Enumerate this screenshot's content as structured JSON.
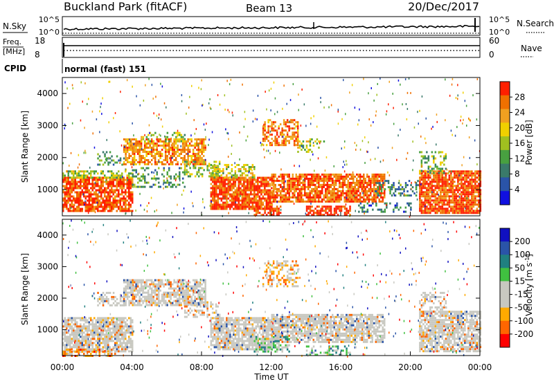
{
  "header": {
    "station": "Buckland Park (fitACF)",
    "beam": "Beam 13",
    "date": "20/Dec/2017"
  },
  "noise_panel": {
    "left_label": "N.Sky",
    "right_label": "N.Search",
    "left_ticks": [
      "10^5",
      "10^0"
    ],
    "right_ticks": [
      "10^5",
      "10^0"
    ]
  },
  "freq_panel": {
    "left_label_line1": "Freq.",
    "left_label_line2": "[MHz]",
    "left_ticks": [
      "18",
      "8"
    ],
    "right_label": "Nave",
    "right_ticks": [
      "60",
      "0"
    ]
  },
  "cpid": {
    "label": "CPID",
    "value": "normal (fast) 151"
  },
  "colors": {
    "power_scale": [
      "#1010e0",
      "#2a54a8",
      "#3a7a6a",
      "#48a040",
      "#a0c020",
      "#f0d000",
      "#f0a020",
      "#f07000",
      "#ff2000"
    ],
    "velocity_scale": [
      "#ff0000",
      "#ff6600",
      "#ffaa00",
      "#c8c8c0",
      "#c8c8c0",
      "#40c040",
      "#208080",
      "#2a54a8",
      "#1010c0"
    ],
    "ground_scatter": "#c0c0b8"
  },
  "chart_data": [
    {
      "type": "heatmap",
      "name": "power",
      "ylabel": "Slant Range [km]",
      "xlabel": "",
      "ylim": [
        180,
        4500
      ],
      "yticks": [
        "4000",
        "3000",
        "2000",
        "1000"
      ],
      "colorbar_label": "Power [dB]",
      "colorbar_ticks": [
        "28",
        "24",
        "20",
        "16",
        "12",
        "8",
        "4"
      ],
      "regions": [
        {
          "t0": 0.0,
          "t1": 4.0,
          "r0": 300,
          "r1": 1400,
          "level": 0.9,
          "fill": 0.8
        },
        {
          "t0": 0.0,
          "t1": 4.0,
          "r0": 1400,
          "r1": 1600,
          "level": 0.5,
          "fill": 0.5
        },
        {
          "t0": 2.0,
          "t1": 3.5,
          "r0": 1800,
          "r1": 2200,
          "level": 0.35,
          "fill": 0.3
        },
        {
          "t0": 3.5,
          "t1": 8.2,
          "r0": 1800,
          "r1": 2600,
          "level": 0.75,
          "fill": 0.7
        },
        {
          "t0": 4.5,
          "t1": 7.0,
          "r0": 2500,
          "r1": 2800,
          "level": 0.5,
          "fill": 0.3
        },
        {
          "t0": 4.0,
          "t1": 7.0,
          "r0": 1100,
          "r1": 1700,
          "level": 0.35,
          "fill": 0.3
        },
        {
          "t0": 7.0,
          "t1": 9.0,
          "r0": 1400,
          "r1": 1900,
          "level": 0.45,
          "fill": 0.4
        },
        {
          "t0": 8.5,
          "t1": 12.0,
          "r0": 400,
          "r1": 1400,
          "level": 0.9,
          "fill": 0.85
        },
        {
          "t0": 8.5,
          "t1": 11.0,
          "r0": 1400,
          "r1": 1800,
          "level": 0.55,
          "fill": 0.5
        },
        {
          "t0": 11.5,
          "t1": 13.5,
          "r0": 2400,
          "r1": 3200,
          "level": 0.8,
          "fill": 0.55
        },
        {
          "t0": 13.5,
          "t1": 15.0,
          "r0": 2200,
          "r1": 2600,
          "level": 0.55,
          "fill": 0.3
        },
        {
          "t0": 12.0,
          "t1": 18.5,
          "r0": 600,
          "r1": 1500,
          "level": 0.85,
          "fill": 0.8
        },
        {
          "t0": 14.0,
          "t1": 16.5,
          "r0": 200,
          "r1": 500,
          "level": 0.95,
          "fill": 0.7
        },
        {
          "t0": 11.0,
          "t1": 12.5,
          "r0": 200,
          "r1": 500,
          "level": 0.9,
          "fill": 0.7
        },
        {
          "t0": 18.0,
          "t1": 20.5,
          "r0": 800,
          "r1": 1300,
          "level": 0.3,
          "fill": 0.35
        },
        {
          "t0": 20.5,
          "t1": 24.0,
          "r0": 300,
          "r1": 1600,
          "level": 0.88,
          "fill": 0.85
        },
        {
          "t0": 20.5,
          "t1": 22.0,
          "r0": 1500,
          "r1": 2200,
          "level": 0.45,
          "fill": 0.4
        },
        {
          "t0": 17.0,
          "t1": 20.0,
          "r0": 300,
          "r1": 600,
          "level": 0.25,
          "fill": 0.3
        }
      ]
    },
    {
      "type": "heatmap",
      "name": "velocity",
      "ylabel": "Slant Range [km]",
      "xlabel": "Time UT",
      "ylim": [
        180,
        4500
      ],
      "yticks": [
        "4000",
        "3000",
        "2000",
        "1000"
      ],
      "xticks": [
        "00:00",
        "04:00",
        "08:00",
        "12:00",
        "16:00",
        "20:00",
        "00:00"
      ],
      "xlim": [
        0,
        24
      ],
      "colorbar_label": "Velocity [m s^-1]",
      "colorbar_ticks": [
        "200",
        "100",
        "50",
        "15",
        "-15",
        "-50",
        "-100",
        "-200"
      ],
      "regions": [
        {
          "t0": 0.0,
          "t1": 4.0,
          "r0": 300,
          "r1": 1400,
          "level": 0.5,
          "fill": 0.8
        },
        {
          "t0": 3.5,
          "t1": 8.2,
          "r0": 1800,
          "r1": 2600,
          "level": 0.5,
          "fill": 0.75
        },
        {
          "t0": 8.5,
          "t1": 12.0,
          "r0": 400,
          "r1": 1400,
          "level": 0.5,
          "fill": 0.8
        },
        {
          "t0": 12.0,
          "t1": 18.5,
          "r0": 600,
          "r1": 1500,
          "level": 0.5,
          "fill": 0.8
        },
        {
          "t0": 20.5,
          "t1": 24.0,
          "r0": 300,
          "r1": 1600,
          "level": 0.5,
          "fill": 0.8
        },
        {
          "t0": 11.0,
          "t1": 13.0,
          "r0": 300,
          "r1": 800,
          "level": 0.6,
          "fill": 0.5
        },
        {
          "t0": 14.0,
          "t1": 16.5,
          "r0": 200,
          "r1": 500,
          "level": 0.62,
          "fill": 0.4
        },
        {
          "t0": 11.5,
          "t1": 13.5,
          "r0": 2400,
          "r1": 3200,
          "level": 0.3,
          "fill": 0.4
        },
        {
          "t0": 0.0,
          "t1": 3.0,
          "r0": 200,
          "r1": 400,
          "level": 0.25,
          "fill": 0.5
        },
        {
          "t0": 2.0,
          "t1": 3.5,
          "r0": 1800,
          "r1": 2200,
          "level": 0.5,
          "fill": 0.4
        },
        {
          "t0": 7.0,
          "t1": 9.0,
          "r0": 1400,
          "r1": 1900,
          "level": 0.5,
          "fill": 0.4
        },
        {
          "t0": 20.5,
          "t1": 22.0,
          "r0": 1500,
          "r1": 2200,
          "level": 0.5,
          "fill": 0.4
        }
      ]
    }
  ]
}
